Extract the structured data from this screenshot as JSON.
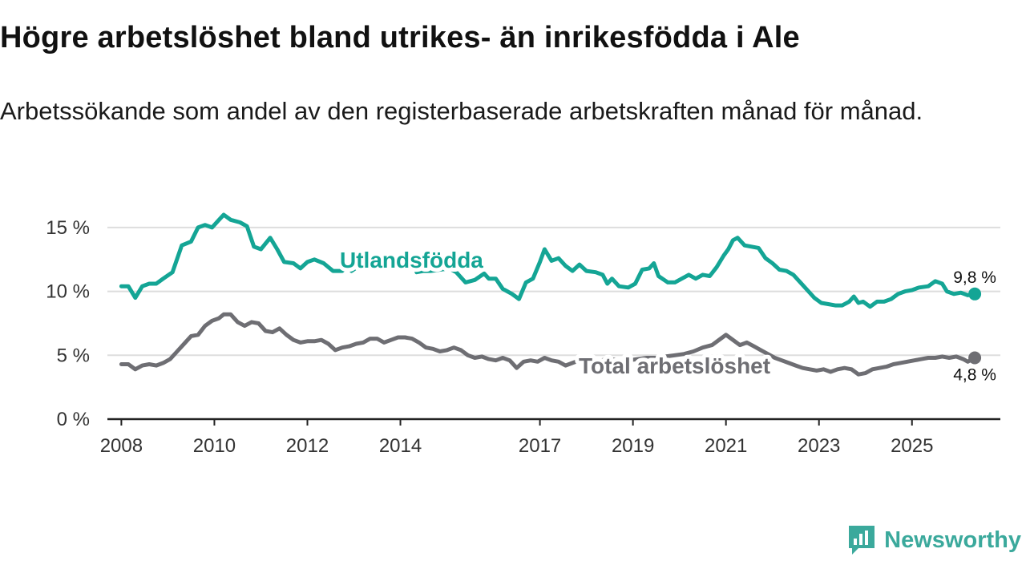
{
  "title": "Högre arbetslöshet bland utrikes- än inrikesfödda i Ale",
  "subtitle": "Arbetssökande som andel av den registerbaserade arbetskraften månad för månad.",
  "brand": "Newsworthy",
  "colors": {
    "foreign": "#14a595",
    "total": "#6e6e73",
    "grid": "#dddddd",
    "axis": "#222222",
    "brand": "#3ba99c"
  },
  "chart_data": {
    "type": "line",
    "title": "Högre arbetslöshet bland utrikes- än inrikesfödda i Ale",
    "ylim": [
      0,
      16.5
    ],
    "xlim": [
      2007.7,
      2026.9
    ],
    "yticks": [
      0,
      5,
      10,
      15
    ],
    "ytick_labels": [
      "0 %",
      "5 %",
      "10 %",
      "15 %"
    ],
    "xticks": [
      2008,
      2010,
      2012,
      2014,
      2017,
      2019,
      2021,
      2023,
      2025
    ],
    "xtick_labels": [
      "2008",
      "2010",
      "2012",
      "2014",
      "2017",
      "2019",
      "2021",
      "2023",
      "2025"
    ],
    "series": [
      {
        "name": "Utlandsfödda",
        "label": "Utlandsfödda",
        "end_label": "9,8 %",
        "points": [
          [
            2008.0,
            10.4
          ],
          [
            2008.15,
            10.4
          ],
          [
            2008.3,
            9.5
          ],
          [
            2008.45,
            10.4
          ],
          [
            2008.6,
            10.6
          ],
          [
            2008.75,
            10.6
          ],
          [
            2008.9,
            11.0
          ],
          [
            2009.1,
            11.5
          ],
          [
            2009.3,
            13.6
          ],
          [
            2009.5,
            13.9
          ],
          [
            2009.65,
            15.0
          ],
          [
            2009.8,
            15.2
          ],
          [
            2009.95,
            15.0
          ],
          [
            2010.1,
            15.6
          ],
          [
            2010.2,
            16.0
          ],
          [
            2010.35,
            15.6
          ],
          [
            2010.55,
            15.4
          ],
          [
            2010.7,
            15.1
          ],
          [
            2010.85,
            13.5
          ],
          [
            2011.0,
            13.3
          ],
          [
            2011.2,
            14.2
          ],
          [
            2011.35,
            13.3
          ],
          [
            2011.5,
            12.3
          ],
          [
            2011.7,
            12.2
          ],
          [
            2011.85,
            11.8
          ],
          [
            2012.0,
            12.3
          ],
          [
            2012.15,
            12.5
          ],
          [
            2012.35,
            12.2
          ],
          [
            2012.55,
            11.6
          ],
          [
            2012.75,
            11.6
          ],
          [
            2012.85,
            12.0
          ],
          [
            2012.95,
            11.6
          ],
          [
            2013.15,
            12.1
          ],
          [
            2013.5,
            12.1
          ],
          [
            2013.8,
            12.1
          ],
          [
            2014.1,
            12.1
          ],
          [
            2014.3,
            12.1
          ],
          [
            2014.35,
            11.5
          ],
          [
            2014.5,
            11.6
          ],
          [
            2014.65,
            11.6
          ],
          [
            2014.85,
            11.7
          ],
          [
            2015.05,
            11.8
          ],
          [
            2015.2,
            11.5
          ],
          [
            2015.4,
            10.7
          ],
          [
            2015.6,
            10.9
          ],
          [
            2015.8,
            11.4
          ],
          [
            2015.9,
            11.0
          ],
          [
            2016.05,
            11.0
          ],
          [
            2016.2,
            10.2
          ],
          [
            2016.4,
            9.8
          ],
          [
            2016.55,
            9.4
          ],
          [
            2016.7,
            10.7
          ],
          [
            2016.85,
            11.0
          ],
          [
            2017.0,
            12.3
          ],
          [
            2017.1,
            13.3
          ],
          [
            2017.25,
            12.4
          ],
          [
            2017.4,
            12.6
          ],
          [
            2017.55,
            12.0
          ],
          [
            2017.7,
            11.6
          ],
          [
            2017.85,
            12.1
          ],
          [
            2018.0,
            11.6
          ],
          [
            2018.2,
            11.5
          ],
          [
            2018.35,
            11.3
          ],
          [
            2018.45,
            10.6
          ],
          [
            2018.55,
            11.0
          ],
          [
            2018.7,
            10.4
          ],
          [
            2018.9,
            10.3
          ],
          [
            2019.05,
            10.6
          ],
          [
            2019.2,
            11.7
          ],
          [
            2019.35,
            11.8
          ],
          [
            2019.45,
            12.2
          ],
          [
            2019.55,
            11.2
          ],
          [
            2019.75,
            10.7
          ],
          [
            2019.9,
            10.7
          ],
          [
            2020.05,
            11.0
          ],
          [
            2020.2,
            11.3
          ],
          [
            2020.35,
            11.0
          ],
          [
            2020.5,
            11.3
          ],
          [
            2020.65,
            11.2
          ],
          [
            2020.8,
            11.9
          ],
          [
            2020.95,
            12.8
          ],
          [
            2021.05,
            13.3
          ],
          [
            2021.15,
            14.0
          ],
          [
            2021.25,
            14.2
          ],
          [
            2021.4,
            13.6
          ],
          [
            2021.55,
            13.5
          ],
          [
            2021.7,
            13.4
          ],
          [
            2021.85,
            12.6
          ],
          [
            2022.0,
            12.2
          ],
          [
            2022.15,
            11.7
          ],
          [
            2022.3,
            11.6
          ],
          [
            2022.45,
            11.3
          ],
          [
            2022.6,
            10.7
          ],
          [
            2022.75,
            10.1
          ],
          [
            2022.9,
            9.5
          ],
          [
            2023.05,
            9.1
          ],
          [
            2023.2,
            9.0
          ],
          [
            2023.35,
            8.9
          ],
          [
            2023.5,
            8.9
          ],
          [
            2023.65,
            9.2
          ],
          [
            2023.75,
            9.6
          ],
          [
            2023.85,
            9.1
          ],
          [
            2023.95,
            9.2
          ],
          [
            2024.1,
            8.8
          ],
          [
            2024.25,
            9.2
          ],
          [
            2024.4,
            9.2
          ],
          [
            2024.55,
            9.4
          ],
          [
            2024.7,
            9.8
          ],
          [
            2024.85,
            10.0
          ],
          [
            2025.0,
            10.1
          ],
          [
            2025.15,
            10.3
          ],
          [
            2025.35,
            10.4
          ],
          [
            2025.5,
            10.8
          ],
          [
            2025.65,
            10.6
          ],
          [
            2025.75,
            10.0
          ],
          [
            2025.9,
            9.8
          ],
          [
            2026.05,
            9.9
          ],
          [
            2026.2,
            9.7
          ],
          [
            2026.35,
            9.8
          ]
        ]
      },
      {
        "name": "Total arbetslöshet",
        "label": "Total arbetslöshet",
        "end_label": "4,8 %",
        "points": [
          [
            2008.0,
            4.3
          ],
          [
            2008.15,
            4.3
          ],
          [
            2008.3,
            3.9
          ],
          [
            2008.45,
            4.2
          ],
          [
            2008.6,
            4.3
          ],
          [
            2008.75,
            4.2
          ],
          [
            2008.9,
            4.4
          ],
          [
            2009.05,
            4.7
          ],
          [
            2009.2,
            5.3
          ],
          [
            2009.35,
            5.9
          ],
          [
            2009.5,
            6.5
          ],
          [
            2009.65,
            6.6
          ],
          [
            2009.8,
            7.3
          ],
          [
            2009.95,
            7.7
          ],
          [
            2010.1,
            7.9
          ],
          [
            2010.2,
            8.2
          ],
          [
            2010.35,
            8.2
          ],
          [
            2010.5,
            7.6
          ],
          [
            2010.65,
            7.3
          ],
          [
            2010.8,
            7.6
          ],
          [
            2010.95,
            7.5
          ],
          [
            2011.1,
            6.9
          ],
          [
            2011.25,
            6.8
          ],
          [
            2011.4,
            7.1
          ],
          [
            2011.55,
            6.6
          ],
          [
            2011.7,
            6.2
          ],
          [
            2011.85,
            6.0
          ],
          [
            2012.0,
            6.1
          ],
          [
            2012.15,
            6.1
          ],
          [
            2012.3,
            6.2
          ],
          [
            2012.45,
            5.9
          ],
          [
            2012.6,
            5.4
          ],
          [
            2012.75,
            5.6
          ],
          [
            2012.9,
            5.7
          ],
          [
            2013.05,
            5.9
          ],
          [
            2013.2,
            6.0
          ],
          [
            2013.35,
            6.3
          ],
          [
            2013.5,
            6.3
          ],
          [
            2013.65,
            6.0
          ],
          [
            2013.8,
            6.2
          ],
          [
            2013.95,
            6.4
          ],
          [
            2014.1,
            6.4
          ],
          [
            2014.25,
            6.3
          ],
          [
            2014.4,
            6.0
          ],
          [
            2014.55,
            5.6
          ],
          [
            2014.7,
            5.5
          ],
          [
            2014.85,
            5.3
          ],
          [
            2015.0,
            5.4
          ],
          [
            2015.15,
            5.6
          ],
          [
            2015.3,
            5.4
          ],
          [
            2015.45,
            5.0
          ],
          [
            2015.6,
            4.8
          ],
          [
            2015.75,
            4.9
          ],
          [
            2015.9,
            4.7
          ],
          [
            2016.05,
            4.6
          ],
          [
            2016.2,
            4.8
          ],
          [
            2016.35,
            4.6
          ],
          [
            2016.5,
            4.0
          ],
          [
            2016.65,
            4.5
          ],
          [
            2016.8,
            4.6
          ],
          [
            2016.95,
            4.5
          ],
          [
            2017.1,
            4.8
          ],
          [
            2017.25,
            4.6
          ],
          [
            2017.4,
            4.5
          ],
          [
            2017.55,
            4.2
          ],
          [
            2017.7,
            4.4
          ],
          [
            2017.85,
            4.6
          ],
          [
            2018.0,
            4.5
          ],
          [
            2018.15,
            4.5
          ],
          [
            2018.3,
            4.6
          ],
          [
            2018.5,
            4.7
          ],
          [
            2018.7,
            4.6
          ],
          [
            2018.9,
            4.6
          ],
          [
            2019.1,
            4.7
          ],
          [
            2019.3,
            4.8
          ],
          [
            2019.5,
            4.8
          ],
          [
            2019.7,
            4.9
          ],
          [
            2019.9,
            5.0
          ],
          [
            2020.1,
            5.1
          ],
          [
            2020.3,
            5.3
          ],
          [
            2020.5,
            5.6
          ],
          [
            2020.7,
            5.8
          ],
          [
            2020.85,
            6.2
          ],
          [
            2021.0,
            6.6
          ],
          [
            2021.15,
            6.2
          ],
          [
            2021.3,
            5.8
          ],
          [
            2021.45,
            6.0
          ],
          [
            2021.6,
            5.7
          ],
          [
            2021.75,
            5.4
          ],
          [
            2021.9,
            5.1
          ],
          [
            2022.05,
            4.8
          ],
          [
            2022.2,
            4.6
          ],
          [
            2022.35,
            4.4
          ],
          [
            2022.5,
            4.2
          ],
          [
            2022.65,
            4.0
          ],
          [
            2022.8,
            3.9
          ],
          [
            2022.95,
            3.8
          ],
          [
            2023.1,
            3.9
          ],
          [
            2023.25,
            3.7
          ],
          [
            2023.4,
            3.9
          ],
          [
            2023.55,
            4.0
          ],
          [
            2023.7,
            3.9
          ],
          [
            2023.85,
            3.5
          ],
          [
            2024.0,
            3.6
          ],
          [
            2024.15,
            3.9
          ],
          [
            2024.3,
            4.0
          ],
          [
            2024.45,
            4.1
          ],
          [
            2024.6,
            4.3
          ],
          [
            2024.75,
            4.4
          ],
          [
            2024.9,
            4.5
          ],
          [
            2025.05,
            4.6
          ],
          [
            2025.2,
            4.7
          ],
          [
            2025.35,
            4.8
          ],
          [
            2025.5,
            4.8
          ],
          [
            2025.65,
            4.9
          ],
          [
            2025.8,
            4.8
          ],
          [
            2025.95,
            4.9
          ],
          [
            2026.1,
            4.7
          ],
          [
            2026.2,
            4.5
          ],
          [
            2026.35,
            4.8
          ]
        ]
      }
    ]
  }
}
